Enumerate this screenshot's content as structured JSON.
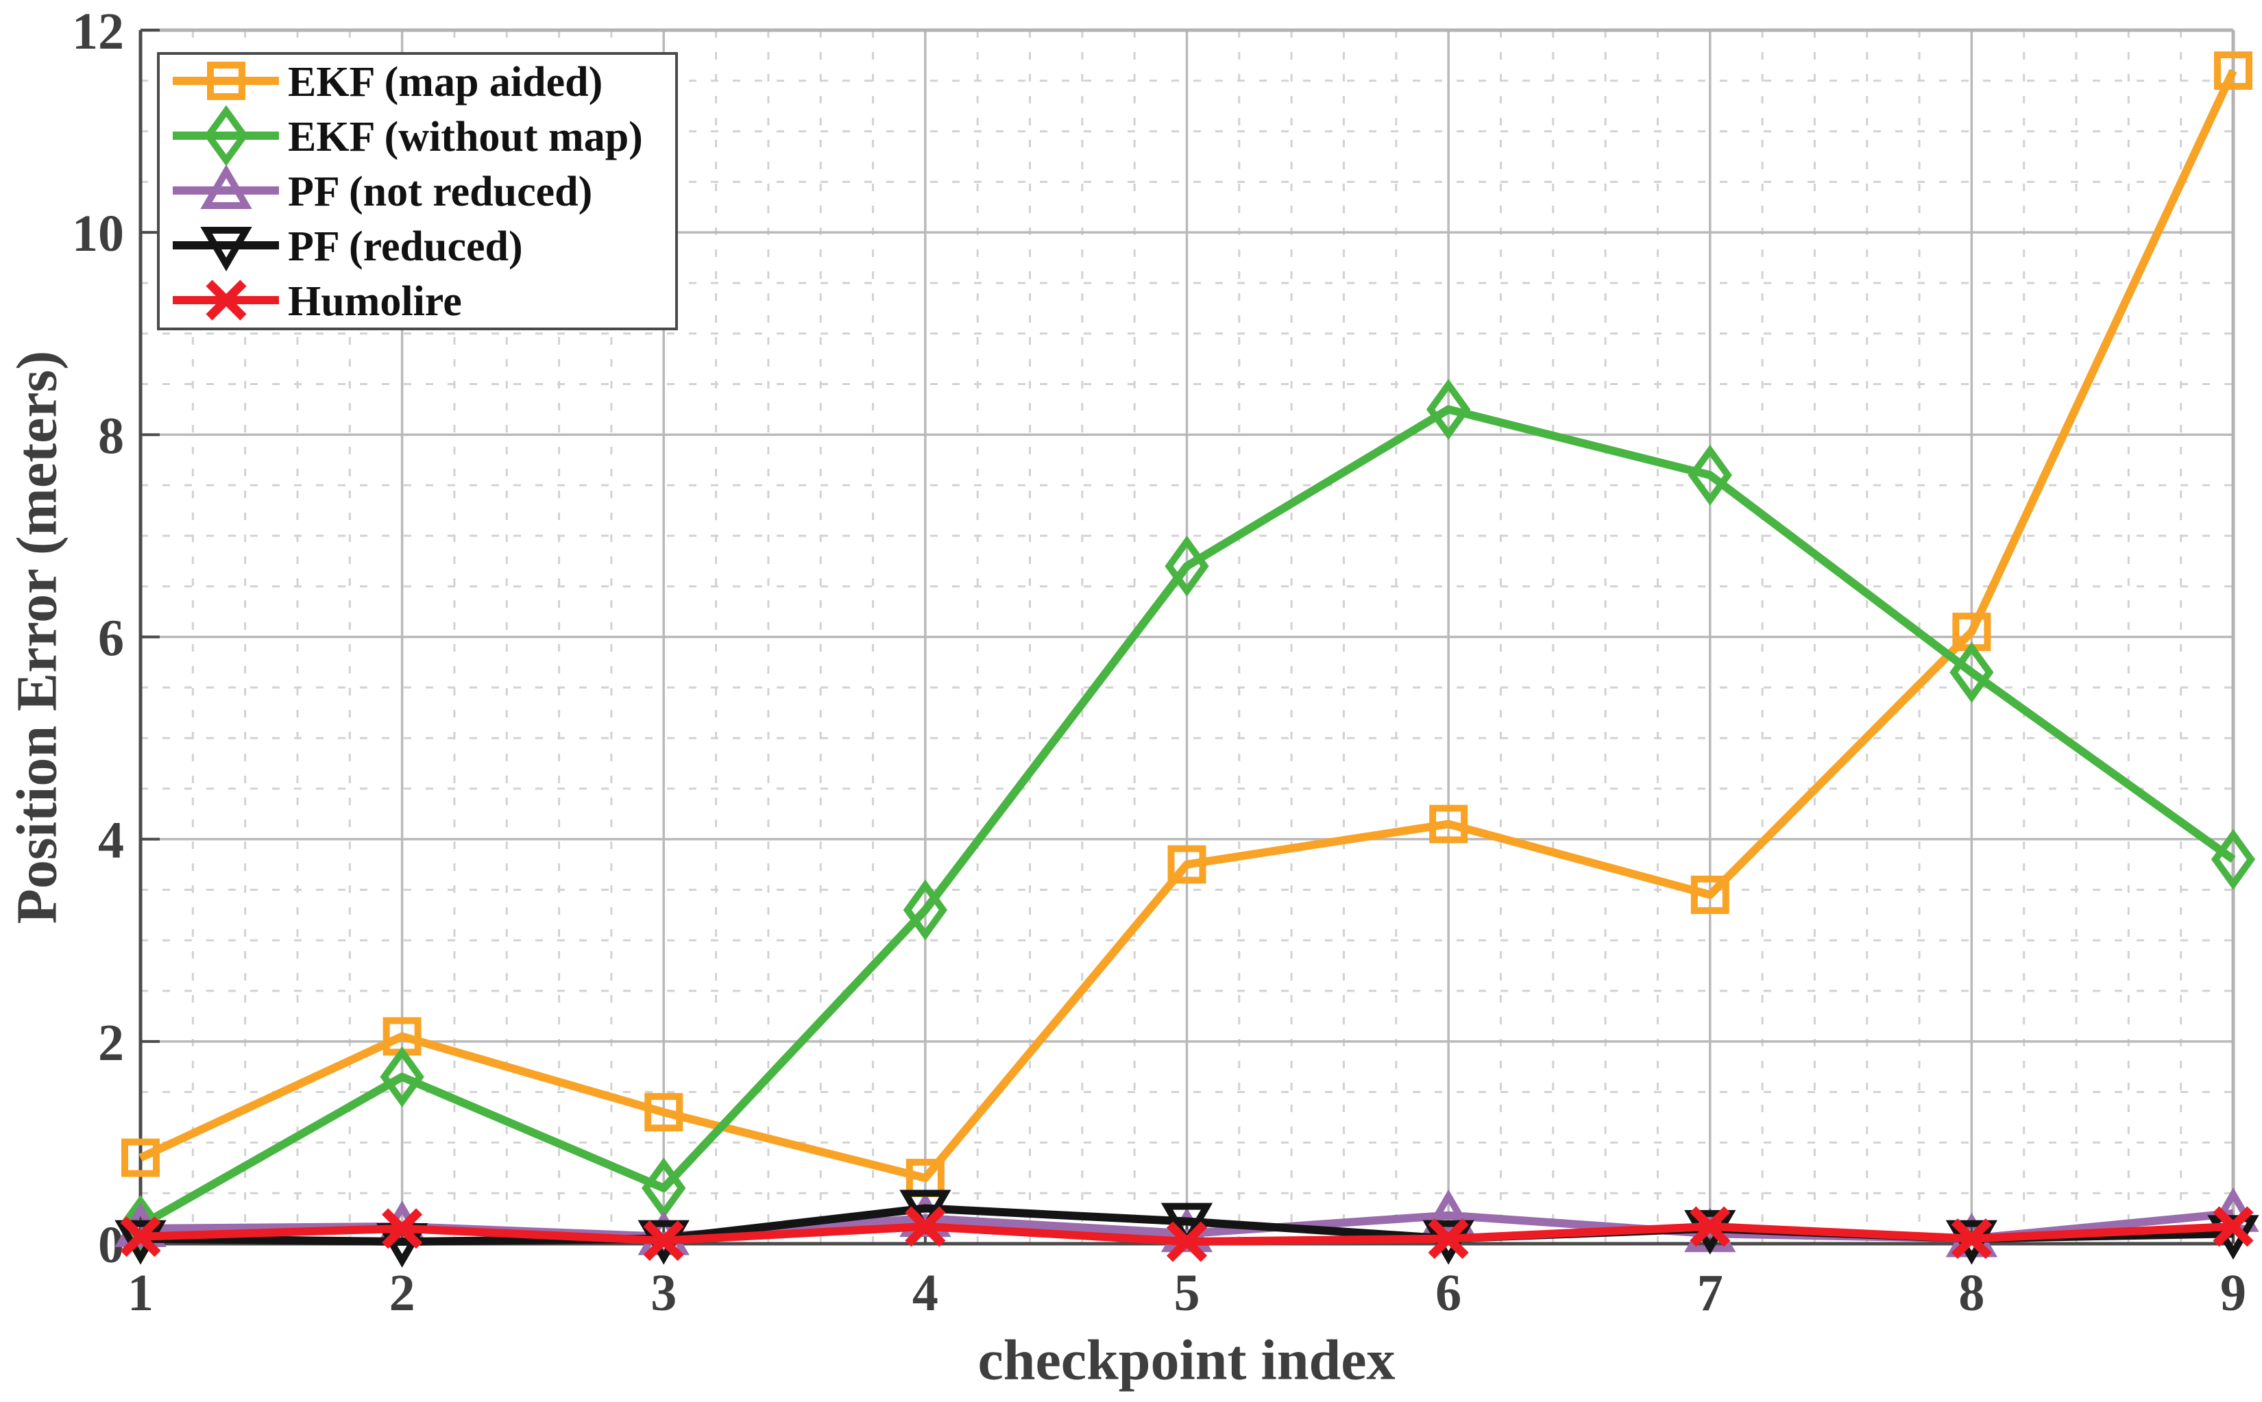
{
  "figure": {
    "background": "#ffffff",
    "text_color": "#3e3e3e",
    "grid_major_color": "#b9b9b9",
    "grid_minor_color": "#d2d2d2",
    "axis_spine_color": "#4a4a4a",
    "frame_light_color": "#b3b3b3",
    "legend_border_color": "#4a4a4a"
  },
  "chart_data": {
    "type": "line",
    "title": "",
    "xlabel": "checkpoint index",
    "ylabel": "Position Error (meters)",
    "xlim": [
      1,
      9
    ],
    "ylim": [
      0,
      12
    ],
    "xticks": [
      1,
      2,
      3,
      4,
      5,
      6,
      7,
      8,
      9
    ],
    "yticks": [
      0,
      2,
      4,
      6,
      8,
      10,
      12
    ],
    "xtick_labels": [
      "1",
      "2",
      "3",
      "4",
      "5",
      "6",
      "7",
      "8",
      "9"
    ],
    "ytick_labels": [
      "0",
      "2",
      "4",
      "6",
      "8",
      "10",
      "12"
    ],
    "x_minor_step": 0.2,
    "y_minor_step": 0.5,
    "grid": "major solid, minor dashed",
    "legend_position": "top-left",
    "x": [
      1,
      2,
      3,
      4,
      5,
      6,
      7,
      8,
      9
    ],
    "series": [
      {
        "name": "EKF (map aided)",
        "marker": "square",
        "color": "#F8A326",
        "values": [
          0.85,
          2.05,
          1.3,
          0.65,
          3.75,
          4.15,
          3.45,
          6.05,
          11.6
        ]
      },
      {
        "name": "EKF (without map)",
        "marker": "diamond",
        "color": "#48B442",
        "values": [
          0.18,
          1.65,
          0.55,
          3.3,
          6.7,
          8.25,
          7.6,
          5.65,
          3.8
        ]
      },
      {
        "name": "PF (not reduced)",
        "marker": "triangle-up",
        "color": "#9A6BAD",
        "values": [
          0.15,
          0.17,
          0.07,
          0.25,
          0.1,
          0.28,
          0.1,
          0.05,
          0.3
        ]
      },
      {
        "name": "PF (reduced)",
        "marker": "triangle-down",
        "color": "#141414",
        "values": [
          0.05,
          0.02,
          0.05,
          0.35,
          0.22,
          0.05,
          0.15,
          0.05,
          0.1
        ]
      },
      {
        "name": "Humolire",
        "marker": "x",
        "color": "#ED1C24",
        "values": [
          0.07,
          0.15,
          0.03,
          0.17,
          0.02,
          0.05,
          0.17,
          0.05,
          0.17
        ]
      }
    ]
  }
}
